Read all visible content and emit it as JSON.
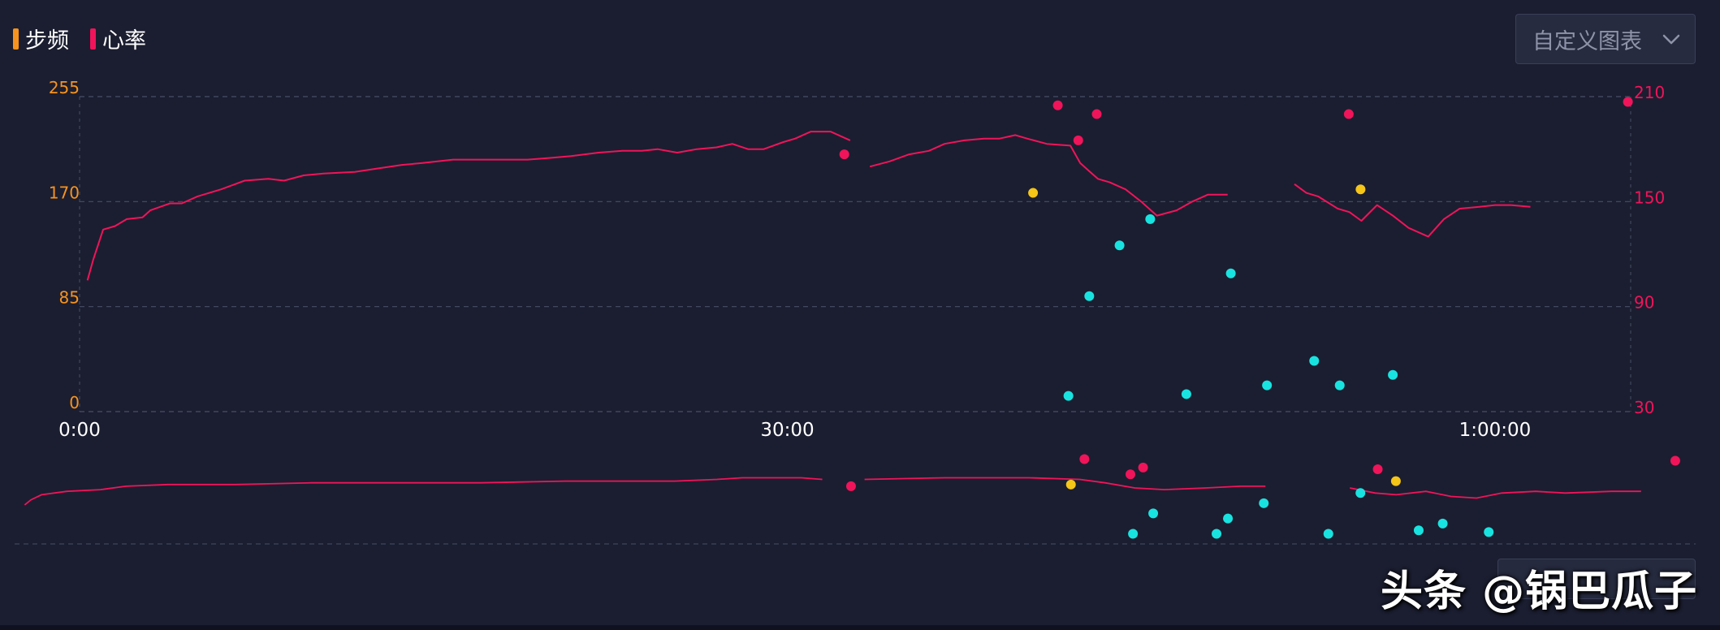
{
  "legend": {
    "items": [
      {
        "label": "步频",
        "color": "#f7931e"
      },
      {
        "label": "心率",
        "color": "#f0145a"
      }
    ]
  },
  "custom_button": {
    "label": "自定义图表",
    "icon": "chevron-down-icon"
  },
  "watermark": "头条 @锅巴瓜子",
  "colors": {
    "background": "#1b1e30",
    "cadence": "#f7931e",
    "heart_rate": "#f0145a",
    "cyan_points": "#19e3e0",
    "yellow_points": "#f5c518",
    "grid": "#4a4e66",
    "x_tick_text": "#ffffff"
  },
  "chart_data": {
    "type": "line",
    "x_ticks": [
      "0:00",
      "30:00",
      "1:00:00"
    ],
    "x_tick_values": [
      0,
      1800,
      3600
    ],
    "xlim": [
      0,
      3945
    ],
    "y_left": {
      "ticks": [
        "255",
        "170",
        "85",
        "0"
      ],
      "values": [
        255,
        170,
        85,
        0
      ],
      "ylim": [
        0,
        255
      ]
    },
    "y_right": {
      "ticks": [
        "210",
        "150",
        "90",
        "30"
      ],
      "values": [
        210,
        150,
        90,
        30
      ],
      "ylim": [
        30,
        210
      ]
    },
    "series": [
      {
        "name": "心率",
        "axis": "right",
        "segments": [
          [
            [
              20,
              105
            ],
            [
              35,
              117
            ],
            [
              60,
              134
            ],
            [
              90,
              136
            ],
            [
              120,
              140
            ],
            [
              160,
              141
            ],
            [
              180,
              145
            ],
            [
              230,
              149
            ],
            [
              260,
              149
            ],
            [
              300,
              153
            ],
            [
              360,
              157
            ],
            [
              420,
              162
            ],
            [
              480,
              163
            ],
            [
              520,
              162
            ],
            [
              570,
              165
            ],
            [
              620,
              166
            ],
            [
              700,
              167
            ],
            [
              760,
              169
            ],
            [
              820,
              171
            ],
            [
              870,
              172
            ],
            [
              950,
              174
            ],
            [
              1020,
              174
            ],
            [
              1080,
              174
            ],
            [
              1140,
              174
            ],
            [
              1200,
              175
            ],
            [
              1250,
              176
            ],
            [
              1320,
              178
            ],
            [
              1380,
              179
            ],
            [
              1430,
              179
            ],
            [
              1470,
              180
            ],
            [
              1520,
              178
            ],
            [
              1570,
              180
            ],
            [
              1620,
              181
            ],
            [
              1660,
              183
            ],
            [
              1700,
              180
            ],
            [
              1740,
              180
            ],
            [
              1790,
              184
            ],
            [
              1820,
              186
            ],
            [
              1860,
              190
            ],
            [
              1880,
              190
            ],
            [
              1910,
              190
            ],
            [
              1960,
              185
            ]
          ],
          [
            [
              2010,
              170
            ],
            [
              2060,
              173
            ],
            [
              2110,
              177
            ],
            [
              2160,
              179
            ],
            [
              2200,
              183
            ],
            [
              2250,
              185
            ],
            [
              2300,
              186
            ],
            [
              2340,
              186
            ],
            [
              2380,
              188
            ],
            [
              2410,
              186
            ],
            [
              2460,
              183
            ],
            [
              2520,
              182
            ],
            [
              2545,
              172
            ],
            [
              2570,
              167
            ],
            [
              2590,
              163
            ],
            [
              2620,
              161
            ],
            [
              2660,
              157
            ],
            [
              2700,
              150
            ],
            [
              2740,
              142
            ],
            [
              2790,
              145
            ],
            [
              2830,
              150
            ],
            [
              2870,
              154
            ],
            [
              2920,
              154
            ]
          ],
          [
            [
              3090,
              160
            ],
            [
              3120,
              155
            ],
            [
              3150,
              153
            ],
            [
              3200,
              146
            ],
            [
              3230,
              144
            ],
            [
              3260,
              139
            ],
            [
              3300,
              148
            ],
            [
              3340,
              142
            ],
            [
              3380,
              135
            ],
            [
              3430,
              130
            ],
            [
              3470,
              140
            ],
            [
              3510,
              146
            ],
            [
              3560,
              147
            ],
            [
              3600,
              148
            ],
            [
              3640,
              148
            ],
            [
              3690,
              147
            ]
          ]
        ]
      }
    ],
    "scatter": [
      {
        "color": "heart_rate",
        "points": [
          [
            1945,
            177
          ],
          [
            2488,
            205
          ],
          [
            2540,
            185
          ],
          [
            2587,
            200
          ],
          [
            3228,
            200
          ],
          [
            3938,
            207
          ]
        ]
      },
      {
        "color": "yellow_points",
        "points": [
          [
            2425,
            155
          ],
          [
            3258,
            157
          ]
        ]
      },
      {
        "color": "cyan_points",
        "points": [
          [
            2723,
            140
          ],
          [
            2645,
            125
          ],
          [
            2568,
            96
          ],
          [
            2515,
            39
          ],
          [
            2815,
            40
          ],
          [
            2928,
            109
          ],
          [
            3020,
            45
          ],
          [
            3140,
            59
          ],
          [
            3205,
            45
          ],
          [
            3340,
            51
          ]
        ]
      }
    ],
    "overview": {
      "segments": [
        [
          [
            20,
            3
          ],
          [
            35,
            6
          ],
          [
            60,
            9
          ],
          [
            120,
            11
          ],
          [
            200,
            12
          ],
          [
            260,
            14
          ],
          [
            360,
            15
          ],
          [
            520,
            15
          ],
          [
            700,
            16
          ],
          [
            900,
            16
          ],
          [
            1100,
            16
          ],
          [
            1300,
            17
          ],
          [
            1450,
            17
          ],
          [
            1560,
            17
          ],
          [
            1660,
            18
          ],
          [
            1720,
            19
          ],
          [
            1790,
            19
          ],
          [
            1860,
            19
          ],
          [
            1910,
            18
          ]
        ],
        [
          [
            2010,
            18
          ],
          [
            2200,
            19
          ],
          [
            2300,
            19
          ],
          [
            2400,
            19
          ],
          [
            2520,
            18
          ],
          [
            2580,
            16
          ],
          [
            2650,
            13
          ],
          [
            2720,
            12
          ],
          [
            2820,
            13
          ],
          [
            2900,
            14
          ],
          [
            2960,
            14
          ]
        ],
        [
          [
            3160,
            13
          ],
          [
            3220,
            10
          ],
          [
            3270,
            9
          ],
          [
            3340,
            11
          ],
          [
            3400,
            8
          ],
          [
            3460,
            7
          ],
          [
            3520,
            10
          ],
          [
            3600,
            11
          ],
          [
            3670,
            10
          ],
          [
            3780,
            11
          ],
          [
            3850,
            11
          ]
        ]
      ],
      "scatter": [
        {
          "color": "heart_rate",
          "points": [
            [
              1978,
              14
            ],
            [
              2531,
              30
            ],
            [
              2640,
              21
            ],
            [
              2670,
              25
            ],
            [
              3226,
              24
            ],
            [
              3931,
              29
            ]
          ]
        },
        {
          "color": "yellow_points",
          "points": [
            [
              2499,
              15
            ],
            [
              3269,
              17
            ]
          ]
        },
        {
          "color": "cyan_points",
          "points": [
            [
              2646,
              -14
            ],
            [
              2694,
              -2
            ],
            [
              2844,
              -14
            ],
            [
              2871,
              -5
            ],
            [
              2956,
              4
            ],
            [
              3109,
              -14
            ],
            [
              3185,
              10
            ],
            [
              3323,
              -12
            ],
            [
              3380,
              -8
            ],
            [
              3489,
              -13
            ]
          ]
        }
      ]
    },
    "grid": true,
    "legend_position": "top-left"
  }
}
